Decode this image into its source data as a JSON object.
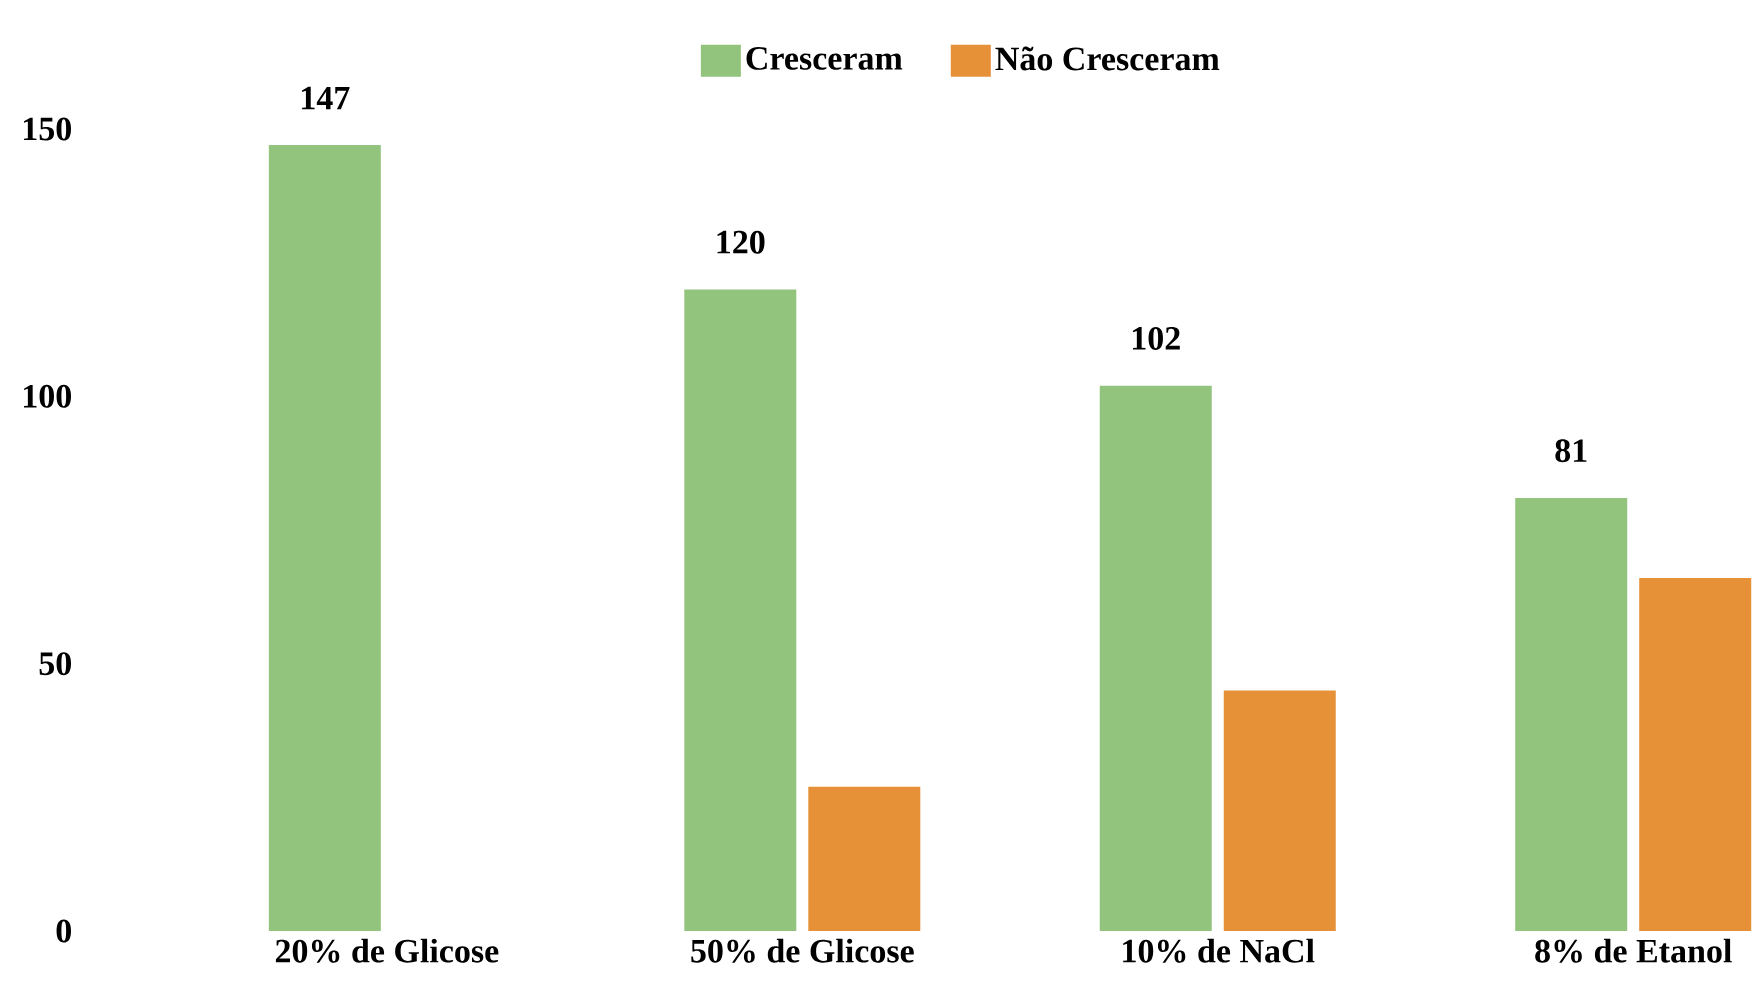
{
  "chart_data": {
    "type": "bar",
    "categories": [
      "20% de Glicose",
      "50% de Glicose",
      "10% de NaCl",
      "8% de Etanol"
    ],
    "series": [
      {
        "name": "Cresceram",
        "color": "#93c47d",
        "values": [
          147,
          120,
          102,
          81
        ],
        "value_labels": [
          "147",
          "120",
          "102",
          "81"
        ]
      },
      {
        "name": "Não Cresceram",
        "color": "#e69138",
        "values": [
          0,
          27,
          45,
          66
        ]
      }
    ],
    "ylim": [
      0,
      150
    ],
    "yticks": [
      0,
      50,
      100,
      150
    ],
    "grid": false,
    "legend": "top"
  }
}
